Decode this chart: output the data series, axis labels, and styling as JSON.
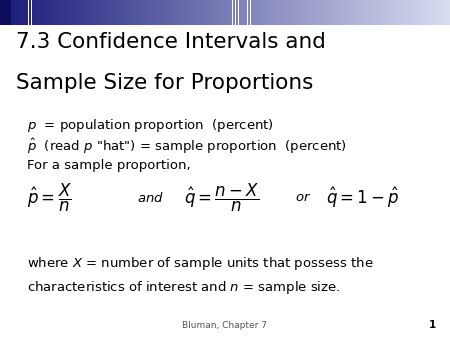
{
  "title_line1": "7.3 Confidence Intervals and",
  "title_line2": "Sample Size for Proportions",
  "bg_color": "#ffffff",
  "footer_text": "Bluman, Chapter 7",
  "footer_page": "1",
  "body_text_color": "#000000",
  "title_color": "#000000",
  "title_fontsize": 15.5,
  "body_fontsize": 9.5,
  "formula_fontsize": 12,
  "header_bar_height": 0.075,
  "header_color_left": "#1a1a7a",
  "header_color_right": "#d8ddf0"
}
